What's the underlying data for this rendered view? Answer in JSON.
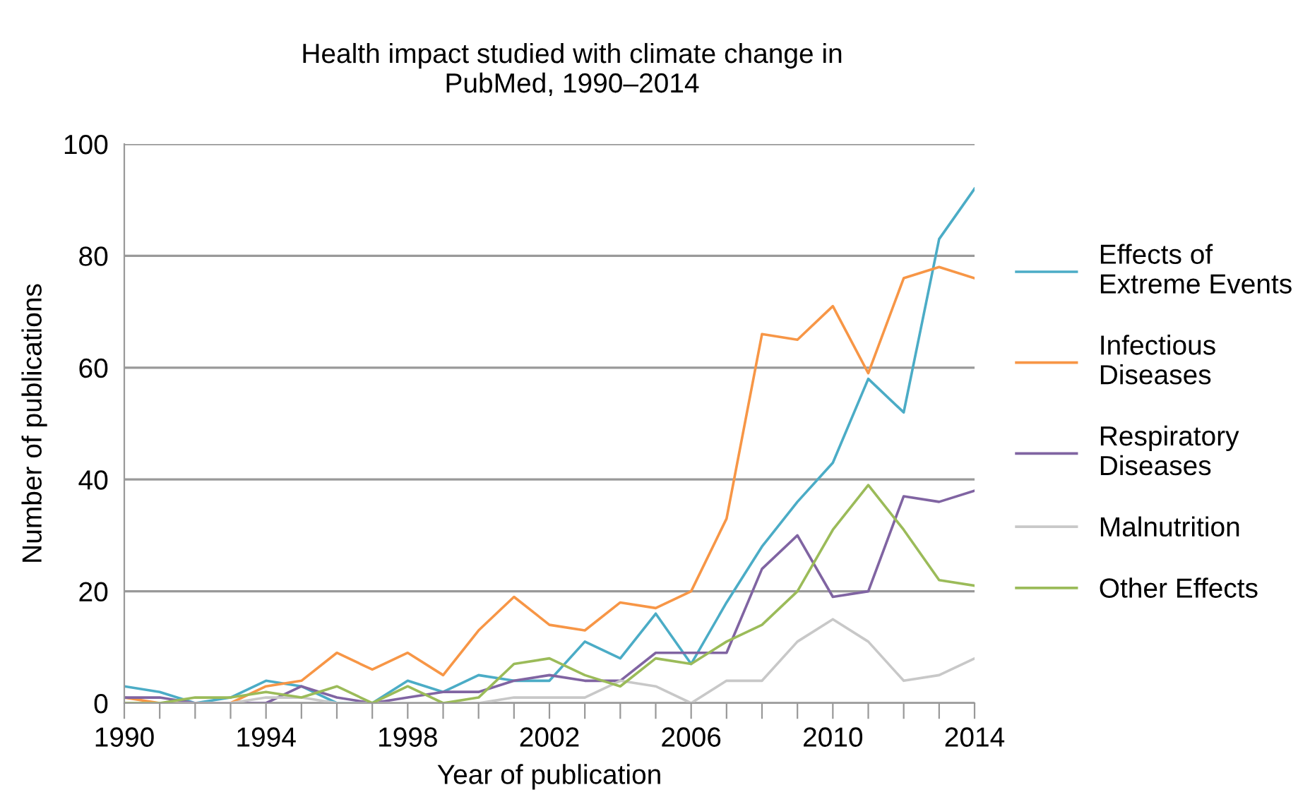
{
  "chart_data": {
    "type": "line",
    "title": "Health impact studied with climate change in\nPubMed, 1990–2014",
    "xlabel": "Year of publication",
    "ylabel": "Number of publications",
    "x": [
      1990,
      1991,
      1992,
      1993,
      1994,
      1995,
      1996,
      1997,
      1998,
      1999,
      2000,
      2001,
      2002,
      2003,
      2004,
      2005,
      2006,
      2007,
      2008,
      2009,
      2010,
      2011,
      2012,
      2013,
      2014
    ],
    "series": [
      {
        "name": "Effects of\nExtreme Events",
        "color": "#4bacc6",
        "values": [
          3,
          2,
          0,
          1,
          4,
          3,
          0,
          0,
          4,
          2,
          5,
          4,
          4,
          11,
          8,
          16,
          7,
          18,
          28,
          36,
          43,
          58,
          52,
          83,
          92
        ]
      },
      {
        "name": "Infectious\nDiseases",
        "color": "#f79646",
        "values": [
          1,
          0,
          0,
          0,
          3,
          4,
          9,
          6,
          9,
          5,
          13,
          19,
          14,
          13,
          18,
          17,
          20,
          33,
          66,
          65,
          71,
          59,
          76,
          78,
          76
        ]
      },
      {
        "name": "Respiratory\nDiseases",
        "color": "#8064a2",
        "values": [
          1,
          1,
          0,
          0,
          0,
          3,
          1,
          0,
          1,
          2,
          2,
          4,
          5,
          4,
          4,
          9,
          9,
          9,
          24,
          30,
          19,
          20,
          37,
          36,
          38
        ]
      },
      {
        "name": "Malnutrition",
        "color": "#c8c8c8",
        "values": [
          0,
          0,
          0,
          0,
          1,
          1,
          0,
          0,
          0,
          0,
          0,
          1,
          1,
          1,
          4,
          3,
          0,
          4,
          4,
          11,
          15,
          11,
          4,
          5,
          8
        ]
      },
      {
        "name": "Other Effects",
        "color": "#9bbb59",
        "values": [
          0,
          0,
          1,
          1,
          2,
          1,
          3,
          0,
          3,
          0,
          1,
          7,
          8,
          5,
          3,
          8,
          7,
          11,
          14,
          20,
          31,
          39,
          31,
          22,
          21
        ]
      }
    ],
    "xlim": [
      1990,
      2014
    ],
    "xticks": [
      1990,
      {
        "value": 1991,
        "label": null
      },
      {
        "value": 1992,
        "label": null
      },
      {
        "value": 1993,
        "label": null
      },
      1994,
      {
        "value": 1995,
        "label": null
      },
      {
        "value": 1996,
        "label": null
      },
      {
        "value": 1997,
        "label": null
      },
      1998,
      {
        "value": 1999,
        "label": null
      },
      {
        "value": 2000,
        "label": null
      },
      {
        "value": 2001,
        "label": null
      },
      2002,
      {
        "value": 2003,
        "label": null
      },
      {
        "value": 2004,
        "label": null
      },
      {
        "value": 2005,
        "label": null
      },
      2006,
      {
        "value": 2007,
        "label": null
      },
      {
        "value": 2008,
        "label": null
      },
      {
        "value": 2009,
        "label": null
      },
      2010,
      {
        "value": 2011,
        "label": null
      },
      {
        "value": 2012,
        "label": null
      },
      {
        "value": 2013,
        "label": null
      },
      2014
    ],
    "ylim": [
      0,
      100
    ],
    "yticks": [
      0,
      20,
      40,
      60,
      80,
      100
    ],
    "grid": "y",
    "legend": "right",
    "marker": "none",
    "line_style": "solid"
  }
}
